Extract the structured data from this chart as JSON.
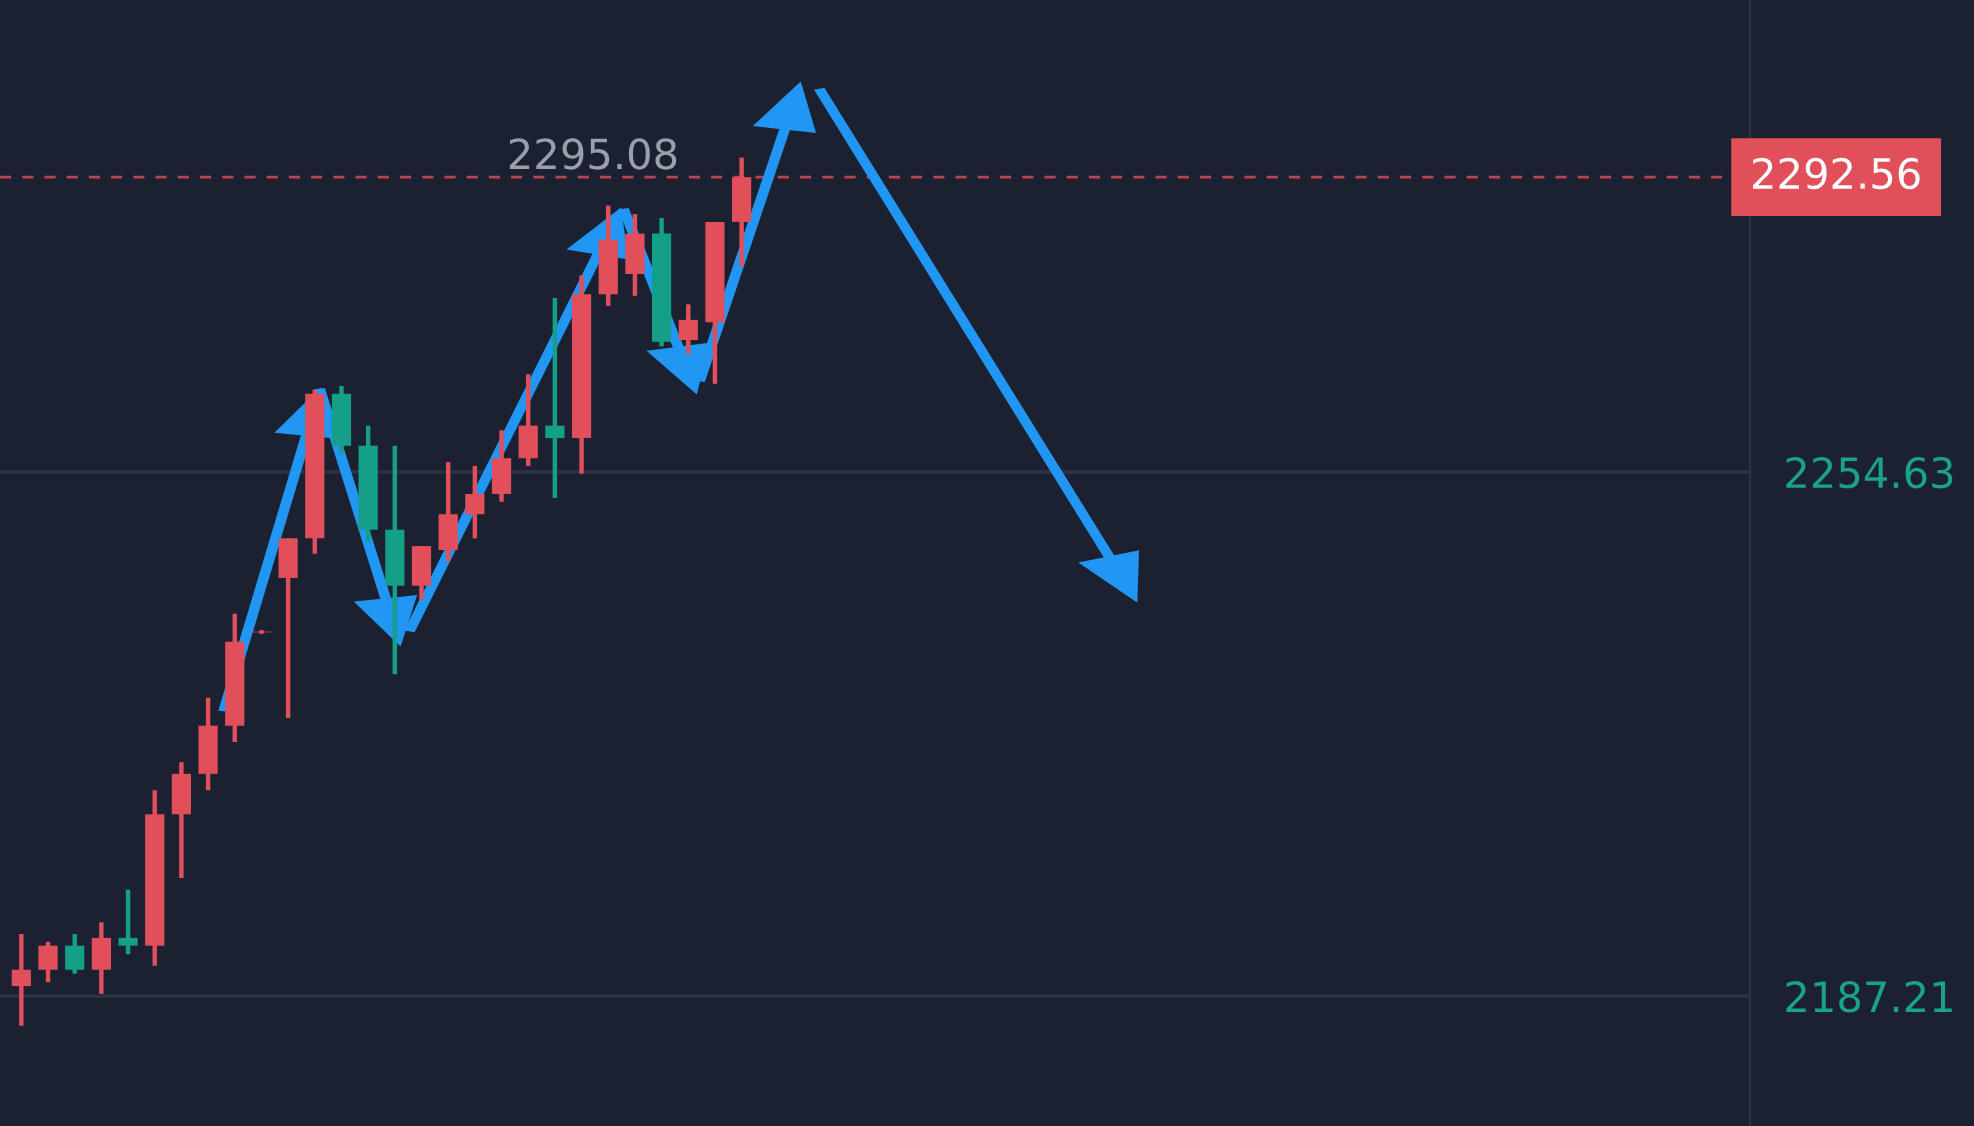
{
  "chart_data": {
    "type": "candlestick",
    "categories": [
      null,
      null,
      null,
      null,
      null,
      null,
      null,
      null,
      null,
      null,
      null,
      null,
      null,
      null,
      null,
      null,
      null,
      null,
      null,
      null,
      null,
      null,
      null,
      null,
      null,
      null,
      null,
      null,
      null,
      null,
      null,
      null,
      null,
      null,
      null,
      null,
      null,
      null,
      null,
      null,
      null,
      null,
      null,
      null,
      null,
      null,
      null,
      null,
      null,
      null,
      null,
      null,
      null,
      null,
      null,
      null,
      null,
      null,
      null,
      null,
      null,
      null,
      null,
      null,
      null
    ],
    "ohlc": [
      [
        2188.5,
        2195.2,
        2183.4,
        2190.6
      ],
      [
        2190.6,
        2194.2,
        2189.0,
        2193.7
      ],
      [
        2193.7,
        2195.2,
        2190.1,
        2190.6
      ],
      [
        2190.6,
        2196.7,
        2187.5,
        2194.7
      ],
      [
        2194.7,
        2200.9,
        2192.6,
        2193.7
      ],
      [
        2193.7,
        2213.7,
        2191.1,
        2210.6
      ],
      [
        2210.6,
        2217.3,
        2202.4,
        2215.8
      ],
      [
        2215.8,
        2225.6,
        2213.7,
        2222.0
      ],
      [
        2222.0,
        2236.4,
        2219.9,
        2232.8
      ],
      [
        2234.0,
        2234.3,
        2233.8,
        2234.1
      ],
      [
        2241.0,
        2246.1,
        2223.0,
        2246.1
      ],
      [
        2246.1,
        2265.2,
        2244.1,
        2264.7
      ],
      [
        2264.7,
        2265.7,
        2257.0,
        2258.0
      ],
      [
        2258.0,
        2260.6,
        2245.6,
        2247.2
      ],
      [
        2247.2,
        2258.0,
        2228.6,
        2240.0
      ],
      [
        2240.0,
        2245.1,
        2238.2,
        2245.1
      ],
      [
        2244.6,
        2255.9,
        2243.1,
        2249.2
      ],
      [
        2249.2,
        2255.4,
        2246.1,
        2251.8
      ],
      [
        2251.8,
        2260.0,
        2250.8,
        2256.4
      ],
      [
        2256.4,
        2267.2,
        2255.4,
        2260.6
      ],
      [
        2260.6,
        2277.0,
        2251.3,
        2259.0
      ],
      [
        2259.0,
        2279.9,
        2254.4,
        2277.5
      ],
      [
        2277.5,
        2288.9,
        2276.0,
        2284.5
      ],
      [
        2280.1,
        2287.8,
        2277.3,
        2285.3
      ],
      [
        2285.3,
        2287.3,
        2270.8,
        2271.4
      ],
      [
        2271.6,
        2276.2,
        2269.8,
        2274.2
      ],
      [
        2273.9,
        2286.8,
        2266.0,
        2286.8
      ],
      [
        2286.8,
        2295.08,
        2281.1,
        2292.56
      ],
      null,
      null,
      null,
      null,
      null,
      null,
      null,
      null,
      null,
      null,
      null,
      null,
      null,
      null,
      null,
      null,
      null,
      null,
      null,
      null,
      null,
      null,
      null,
      null,
      null,
      null,
      null,
      null,
      null,
      null,
      null,
      null,
      null,
      null,
      null,
      null,
      null
    ],
    "colors": [
      "#e04f5a",
      "#e04f5a",
      "#14a088",
      "#e04f5a",
      "#14a088",
      "#e04f5a",
      "#e04f5a",
      "#e04f5a",
      "#e04f5a",
      "#e04f5a",
      "#e04f5a",
      "#e04f5a",
      "#14a088",
      "#14a088",
      "#14a088",
      "#e04f5a",
      "#e04f5a",
      "#e04f5a",
      "#e04f5a",
      "#e04f5a",
      "#14a088",
      "#e04f5a",
      "#e04f5a",
      "#e04f5a",
      "#14a088",
      "#e04f5a",
      "#e04f5a",
      "#e04f5a",
      null,
      null,
      null,
      null,
      null,
      null,
      null,
      null,
      null,
      null,
      null,
      null,
      null,
      null,
      null,
      null,
      null,
      null,
      null,
      null,
      null,
      null,
      null,
      null,
      null,
      null,
      null,
      null,
      null,
      null,
      null,
      null,
      null,
      null,
      null,
      null,
      null
    ],
    "ylim": [
      2170.5,
      2315.35
    ],
    "yticks": [
      2187.21,
      2254.63
    ],
    "grid": "y",
    "ref_lines": [
      {
        "axis": "y",
        "value": 2292.56,
        "label": "2292.56",
        "color": "#e04f5a",
        "line_style": "dashed"
      }
    ],
    "annotations": [
      "2295.08"
    ]
  }
}
